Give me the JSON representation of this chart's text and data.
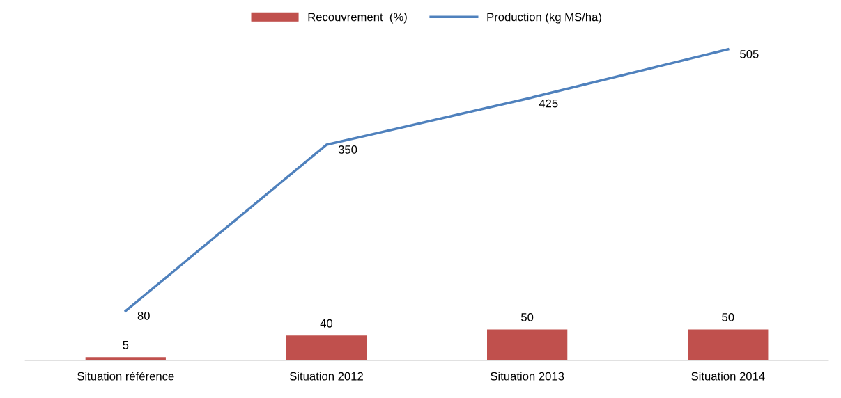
{
  "chart_data": {
    "type": "bar",
    "categories": [
      "Situation référence",
      "Situation 2012",
      "Situation 2013",
      "Situation 2014"
    ],
    "series": [
      {
        "name": "Recouvrement  (%)",
        "color": "#c0504d",
        "values": [
          5,
          40,
          50,
          50
        ]
      },
      {
        "name": "Production (kg MS/ha)",
        "type": "line",
        "color": "#4f81bd",
        "values": [
          80,
          350,
          425,
          505
        ]
      }
    ],
    "data_labels": true,
    "legend": "top",
    "grid": false,
    "marker": "none"
  }
}
